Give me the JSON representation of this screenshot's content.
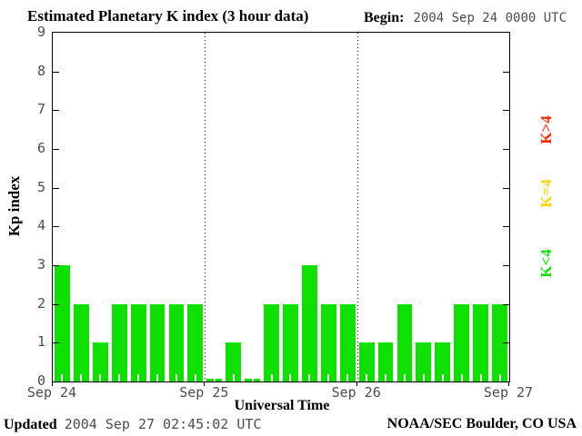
{
  "header": {
    "title": "Estimated Planetary K index (3 hour data)",
    "begin_label": "Begin:",
    "begin_value": "2004 Sep 24 0000 UTC"
  },
  "chart_data": {
    "type": "bar",
    "title": "Estimated Planetary K index (3 hour data)",
    "begin": "2004 Sep 24 0000 UTC",
    "xlabel": "Universal Time",
    "ylabel": "Kp index",
    "ylim": [
      0,
      9
    ],
    "y_ticks": [
      0,
      1,
      2,
      3,
      4,
      5,
      6,
      7,
      8,
      9
    ],
    "hours_per_bar": 3,
    "x_axis_labels": [
      "Sep 24",
      "Sep 25",
      "Sep 26",
      "Sep 27"
    ],
    "days": [
      "Sep 24",
      "Sep 25",
      "Sep 26"
    ],
    "values_per_day": [
      [
        3,
        2,
        1,
        2,
        2,
        2,
        2,
        2
      ],
      [
        0,
        1,
        0,
        2,
        2,
        3,
        2,
        2
      ],
      [
        1,
        1,
        2,
        1,
        1,
        2,
        2,
        2
      ]
    ],
    "bar_color": "#0ee000",
    "grid": "dotted vertical lines at day boundaries",
    "legend_position": "right, rotated 90deg",
    "legend": [
      {
        "label": "K>4",
        "color": "#ff2600"
      },
      {
        "label": "K=4",
        "color": "#ffd300"
      },
      {
        "label": "K<4",
        "color": "#0ee000"
      }
    ]
  },
  "footer": {
    "updated_label": "Updated",
    "updated_value": "2004 Sep 27 02:45:02 UTC",
    "credit": "NOAA/SEC Boulder, CO USA"
  }
}
